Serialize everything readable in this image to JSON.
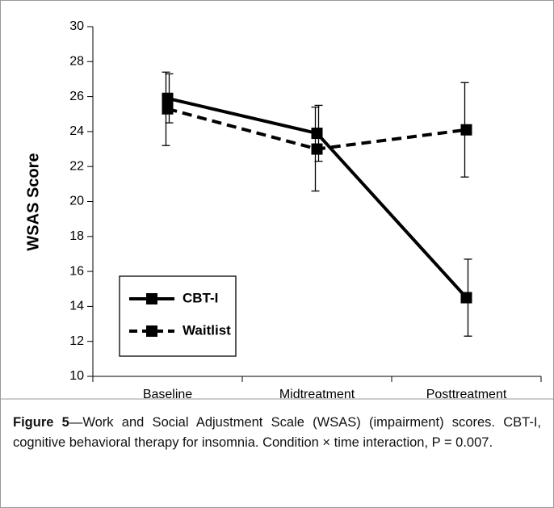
{
  "chart_data": {
    "type": "line",
    "ylabel": "WSAS Score",
    "categories": [
      "Baseline",
      "Midtreatment",
      "Posttreatment"
    ],
    "series": [
      {
        "name": "CBT-I",
        "color": "#000000",
        "line_style": "solid",
        "values": [
          25.9,
          23.9,
          14.5
        ],
        "errors": [
          1.4,
          1.6,
          2.2
        ]
      },
      {
        "name": "Waitlist",
        "color": "#000000",
        "line_style": "dashed",
        "values": [
          25.3,
          23.0,
          24.1
        ],
        "errors": [
          2.1,
          2.4,
          2.7
        ]
      }
    ],
    "ylim": [
      10,
      30
    ],
    "yticks": [
      10,
      12,
      14,
      16,
      18,
      20,
      22,
      24,
      26,
      28,
      30
    ],
    "legend": "lower left"
  },
  "caption": {
    "label": "Figure 5",
    "text": "—Work and Social Adjustment Scale (WSAS) (impairment) scores. CBT-I, cognitive behavioral therapy for insomnia. Condition × time interaction, P = 0.007."
  }
}
